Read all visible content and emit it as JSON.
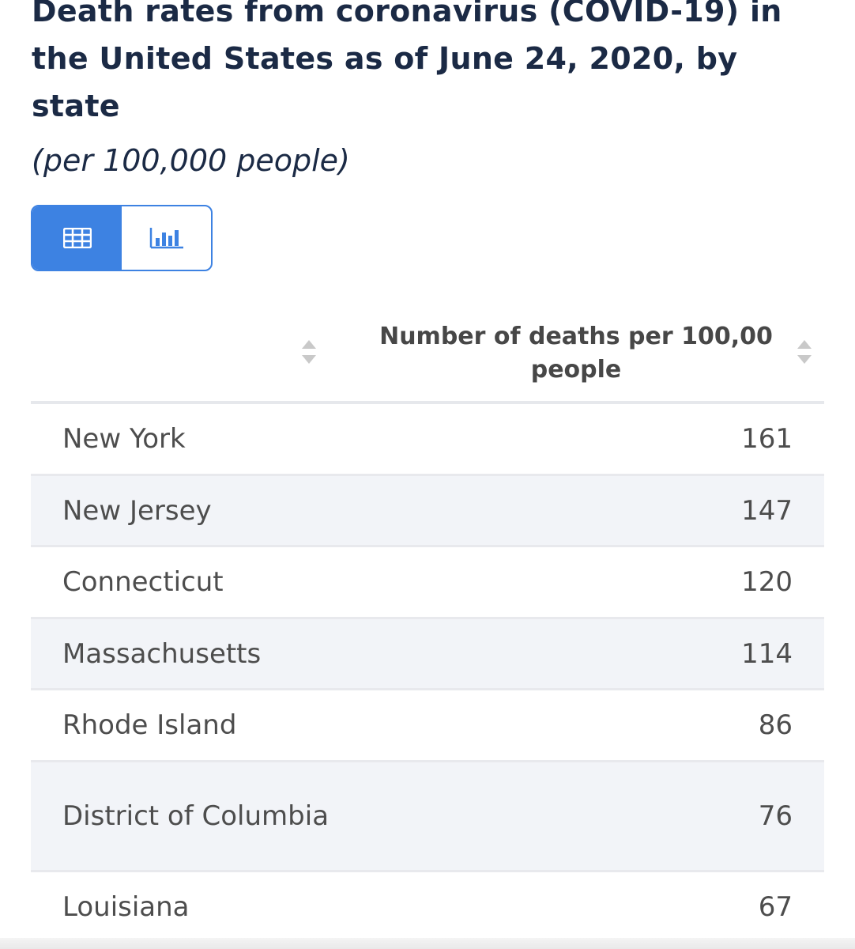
{
  "header": {
    "title": "Death rates from coronavirus (COVID-19) in the United States as of June 24, 2020, by state",
    "subtitle": "(per 100,000 people)"
  },
  "view_toggle": {
    "options": [
      {
        "icon": "table-icon",
        "active": true
      },
      {
        "icon": "bar-chart-icon",
        "active": false
      }
    ]
  },
  "colors": {
    "accent": "#3d82e2",
    "title": "#1b2a45",
    "row_alt": "#f2f4f8"
  },
  "table": {
    "columns": [
      "",
      "Number of deaths per 100,00 people"
    ],
    "rows": [
      {
        "state": "New York",
        "value": "161"
      },
      {
        "state": "New Jersey",
        "value": "147"
      },
      {
        "state": "Connecticut",
        "value": "120"
      },
      {
        "state": "Massachusetts",
        "value": "114"
      },
      {
        "state": "Rhode Island",
        "value": "86"
      },
      {
        "state": "District of Columbia",
        "value": "76"
      },
      {
        "state": "Louisiana",
        "value": "67"
      }
    ]
  }
}
